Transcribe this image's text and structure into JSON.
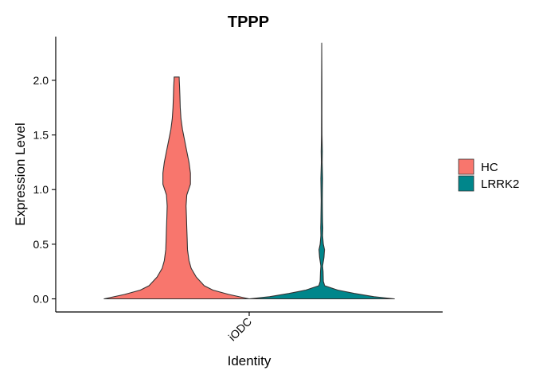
{
  "chart_data": {
    "type": "violin",
    "title": "TPPP",
    "xlabel": "Identity",
    "ylabel": "Expression Level",
    "categories": [
      "iODC"
    ],
    "ylim": [
      -0.12,
      2.4
    ],
    "y_ticks": [
      "0.0",
      "0.5",
      "1.0",
      "1.5",
      "2.0"
    ],
    "legend_position": "right",
    "series": [
      {
        "name": "HC",
        "color": "#F8766D",
        "max": 2.03,
        "density": [
          [
            0.0,
            1.0
          ],
          [
            0.04,
            0.72
          ],
          [
            0.08,
            0.5
          ],
          [
            0.12,
            0.38
          ],
          [
            0.2,
            0.27
          ],
          [
            0.28,
            0.2
          ],
          [
            0.35,
            0.17
          ],
          [
            0.45,
            0.15
          ],
          [
            0.55,
            0.145
          ],
          [
            0.65,
            0.14
          ],
          [
            0.75,
            0.135
          ],
          [
            0.85,
            0.13
          ],
          [
            0.95,
            0.14
          ],
          [
            1.05,
            0.19
          ],
          [
            1.15,
            0.19
          ],
          [
            1.25,
            0.17
          ],
          [
            1.35,
            0.14
          ],
          [
            1.45,
            0.11
          ],
          [
            1.55,
            0.08
          ],
          [
            1.65,
            0.06
          ],
          [
            1.75,
            0.05
          ],
          [
            1.85,
            0.045
          ],
          [
            1.95,
            0.04
          ],
          [
            2.01,
            0.035
          ],
          [
            2.03,
            0.035
          ]
        ]
      },
      {
        "name": "LRRK2",
        "color": "#00868B",
        "max": 2.34,
        "density": [
          [
            0.0,
            1.0
          ],
          [
            0.02,
            0.72
          ],
          [
            0.05,
            0.45
          ],
          [
            0.08,
            0.22
          ],
          [
            0.12,
            0.04
          ],
          [
            0.16,
            0.022
          ],
          [
            0.25,
            0.018
          ],
          [
            0.3,
            0.012
          ],
          [
            0.38,
            0.03
          ],
          [
            0.45,
            0.038
          ],
          [
            0.5,
            0.022
          ],
          [
            0.58,
            0.012
          ],
          [
            0.65,
            0.015
          ],
          [
            0.7,
            0.012
          ],
          [
            0.8,
            0.01
          ],
          [
            0.9,
            0.008
          ],
          [
            1.0,
            0.01
          ],
          [
            1.1,
            0.012
          ],
          [
            1.25,
            0.006
          ],
          [
            1.35,
            0.008
          ],
          [
            1.5,
            0.004
          ],
          [
            1.7,
            0.003
          ],
          [
            1.9,
            0.003
          ],
          [
            2.1,
            0.0015
          ],
          [
            2.34,
            0.0
          ]
        ]
      }
    ]
  }
}
